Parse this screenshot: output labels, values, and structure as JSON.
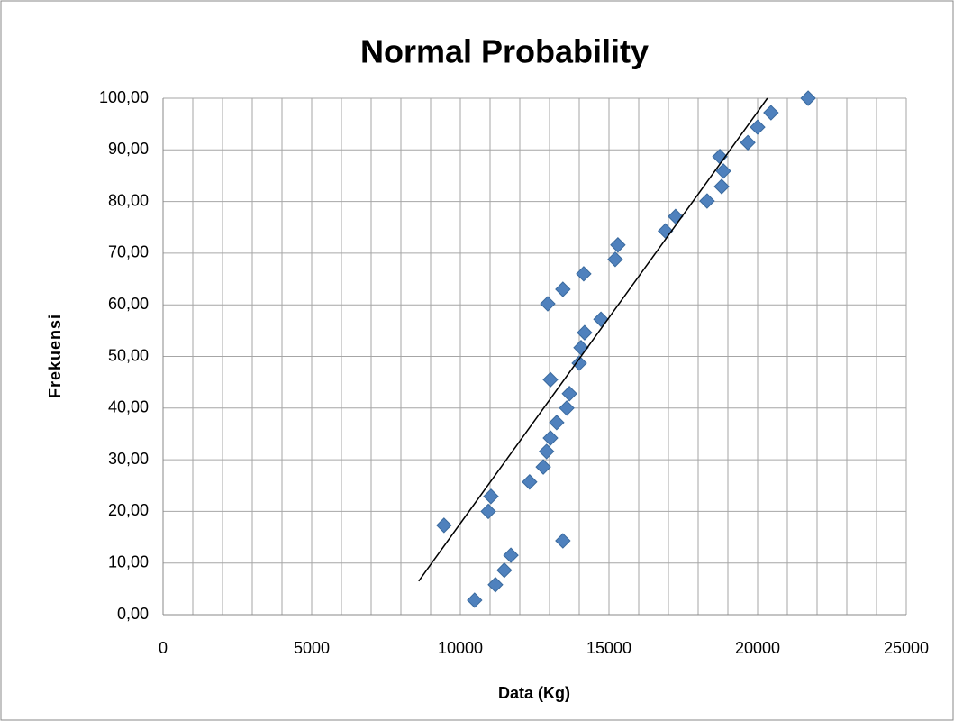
{
  "chart_data": {
    "type": "scatter",
    "title": "Normal Probability",
    "x_label": "Data (Kg)",
    "y_label": "Frekuensi",
    "x": [
      9450,
      10480,
      10940,
      11030,
      11180,
      11480,
      11700,
      12330,
      12790,
      12900,
      13030,
      12940,
      13030,
      13240,
      13450,
      13450,
      13580,
      13670,
      14000,
      14060,
      14150,
      14180,
      14730,
      15210,
      15300,
      16900,
      17240,
      18300,
      18790,
      18730,
      18850,
      19670,
      20000,
      20450,
      21700
    ],
    "values": [
      17.3,
      2.8,
      20.0,
      22.9,
      5.8,
      8.6,
      11.5,
      25.7,
      28.6,
      31.6,
      34.2,
      60.2,
      45.5,
      37.2,
      63.0,
      14.3,
      40.0,
      42.8,
      48.7,
      51.7,
      66.0,
      54.6,
      57.2,
      68.8,
      71.6,
      74.3,
      77.1,
      80.1,
      82.9,
      88.7,
      85.9,
      91.4,
      94.4,
      97.2,
      100.0
    ],
    "color": "#4f81bd",
    "trendline": {
      "x": [
        8600,
        20330
      ],
      "values": [
        6.5,
        100
      ],
      "color": "#000000"
    },
    "xlim": [
      0,
      25000
    ],
    "xticks": [
      0,
      5000,
      10000,
      15000,
      20000,
      25000
    ],
    "x_minor_grid": 1000,
    "ylim": [
      0,
      100
    ],
    "yticks": [
      {
        "value": 0,
        "label": "0,00"
      },
      {
        "value": 10,
        "label": "10,00"
      },
      {
        "value": 20,
        "label": "20,00"
      },
      {
        "value": 30,
        "label": "30,00"
      },
      {
        "value": 40,
        "label": "40,00"
      },
      {
        "value": 50,
        "label": "50,00"
      },
      {
        "value": 60,
        "label": "60,00"
      },
      {
        "value": 70,
        "label": "70,00"
      },
      {
        "value": 80,
        "label": "80,00"
      },
      {
        "value": 90,
        "label": "90,00"
      },
      {
        "value": 100,
        "label": "100,00"
      }
    ],
    "grid": true
  }
}
